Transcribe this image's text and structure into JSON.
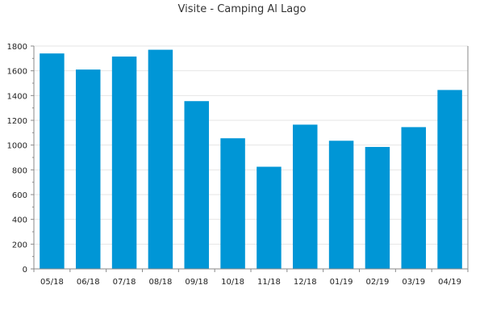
{
  "chart_data": {
    "type": "bar",
    "title": "Visite - Camping Al Lago",
    "xlabel": "",
    "ylabel": "",
    "categories": [
      "05/18",
      "06/18",
      "07/18",
      "08/18",
      "09/18",
      "10/18",
      "11/18",
      "12/18",
      "01/19",
      "02/19",
      "03/19",
      "04/19"
    ],
    "values": [
      1740,
      1610,
      1715,
      1770,
      1355,
      1055,
      825,
      1165,
      1035,
      985,
      1145,
      1445
    ],
    "ylim": [
      0,
      1800
    ],
    "yticks": [
      0,
      200,
      400,
      600,
      800,
      1000,
      1200,
      1400,
      1600,
      1800
    ],
    "grid": true,
    "bar_color": "#0096d6",
    "grid_color": "#e6e6e6",
    "axis_color": "#888888"
  }
}
